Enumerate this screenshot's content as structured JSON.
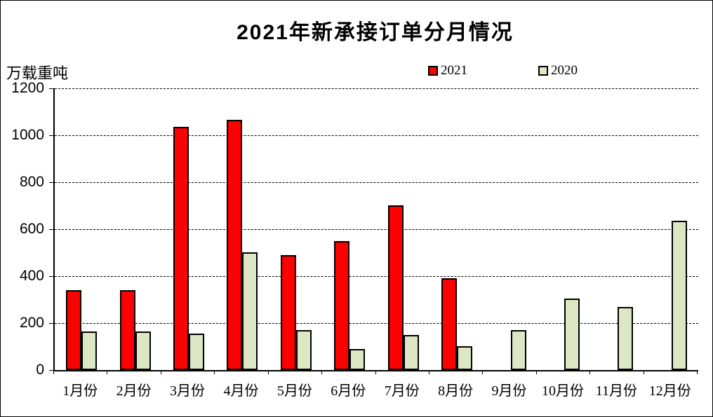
{
  "chart_data": {
    "type": "bar",
    "title": "2021年新承接订单分月情况",
    "ylabel": "万载重吨",
    "xlabel": "",
    "categories": [
      "1月份",
      "2月份",
      "3月份",
      "4月份",
      "5月份",
      "6月份",
      "7月份",
      "8月份",
      "9月份",
      "10月份",
      "11月份",
      "12月份"
    ],
    "series": [
      {
        "name": "2021",
        "color": "#ff0000",
        "values": [
          340,
          340,
          1035,
          1065,
          490,
          550,
          700,
          390,
          null,
          null,
          null,
          null
        ]
      },
      {
        "name": "2020",
        "color": "#dce8c3",
        "values": [
          165,
          165,
          155,
          500,
          170,
          90,
          150,
          100,
          170,
          305,
          270,
          635
        ]
      }
    ],
    "ylim": [
      0,
      1200
    ],
    "yticks": [
      0,
      200,
      400,
      600,
      800,
      1000,
      1200
    ],
    "grid": "horizontal-dashed",
    "legend_position": "top",
    "bar_border_color": "#000000",
    "axis_color": "#000000"
  }
}
